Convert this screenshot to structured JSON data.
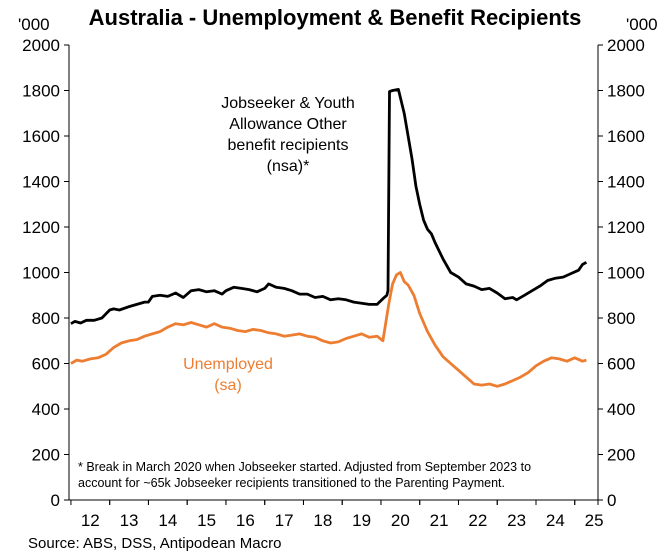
{
  "chart_data": {
    "type": "line",
    "title": "Australia - Unemployment & Benefit Recipients",
    "unit_left": "'000",
    "unit_right": "'000",
    "ylim": [
      0,
      2000
    ],
    "yticks": [
      0,
      200,
      400,
      600,
      800,
      1000,
      1200,
      1400,
      1600,
      1800,
      2000
    ],
    "xlim": [
      11.95,
      25.6
    ],
    "xticks": [
      12,
      13,
      14,
      15,
      16,
      17,
      18,
      19,
      20,
      21,
      22,
      23,
      24,
      25
    ],
    "grid": false,
    "colors": {
      "jobseeker": "#000000",
      "unemployed": "#ED7D31"
    },
    "series": [
      {
        "name": "Jobseeker & Youth Allowance Other benefit recipients (nsa)*",
        "label_lines": [
          "Jobseeker & Youth",
          "Allowance Other",
          "benefit recipients",
          "(nsa)*"
        ],
        "x": [
          12.0,
          12.1,
          12.25,
          12.4,
          12.6,
          12.8,
          13.0,
          13.1,
          13.25,
          13.5,
          13.7,
          13.9,
          14.0,
          14.1,
          14.3,
          14.5,
          14.7,
          14.9,
          15.1,
          15.3,
          15.5,
          15.7,
          15.9,
          16.0,
          16.2,
          16.4,
          16.6,
          16.8,
          17.0,
          17.1,
          17.3,
          17.5,
          17.7,
          17.9,
          18.1,
          18.3,
          18.5,
          18.7,
          18.9,
          19.1,
          19.3,
          19.5,
          19.7,
          19.9,
          20.05,
          20.15,
          20.18,
          20.22,
          20.3,
          20.45,
          20.6,
          20.7,
          20.8,
          20.9,
          21.0,
          21.1,
          21.2,
          21.3,
          21.4,
          21.6,
          21.8,
          22.0,
          22.2,
          22.4,
          22.6,
          22.8,
          23.0,
          23.2,
          23.4,
          23.5,
          23.7,
          23.9,
          24.1,
          24.3,
          24.5,
          24.7,
          24.9,
          25.1,
          25.2,
          25.3
        ],
        "values": [
          775,
          785,
          778,
          790,
          790,
          800,
          835,
          840,
          835,
          850,
          860,
          870,
          870,
          895,
          900,
          895,
          910,
          890,
          920,
          925,
          915,
          920,
          905,
          920,
          935,
          930,
          925,
          915,
          930,
          950,
          935,
          930,
          920,
          905,
          905,
          890,
          895,
          880,
          885,
          880,
          870,
          865,
          860,
          860,
          885,
          900,
          920,
          1795,
          1800,
          1805,
          1700,
          1600,
          1500,
          1380,
          1300,
          1230,
          1190,
          1170,
          1130,
          1060,
          1000,
          980,
          950,
          940,
          925,
          930,
          910,
          885,
          890,
          880,
          900,
          920,
          940,
          965,
          975,
          980,
          995,
          1010,
          1035,
          1045
        ]
      },
      {
        "name": "Unemployed (sa)",
        "label_lines": [
          "Unemployed",
          "(sa)"
        ],
        "x": [
          12.0,
          12.15,
          12.3,
          12.5,
          12.7,
          12.9,
          13.1,
          13.3,
          13.5,
          13.7,
          13.9,
          14.1,
          14.3,
          14.5,
          14.7,
          14.9,
          15.1,
          15.3,
          15.5,
          15.7,
          15.9,
          16.1,
          16.3,
          16.5,
          16.7,
          16.9,
          17.1,
          17.3,
          17.5,
          17.7,
          17.9,
          18.1,
          18.3,
          18.5,
          18.7,
          18.9,
          19.1,
          19.3,
          19.5,
          19.7,
          19.9,
          20.05,
          20.2,
          20.3,
          20.4,
          20.5,
          20.6,
          20.7,
          20.85,
          21.0,
          21.2,
          21.4,
          21.6,
          21.8,
          22.0,
          22.2,
          22.4,
          22.6,
          22.8,
          23.0,
          23.2,
          23.4,
          23.6,
          23.8,
          24.0,
          24.2,
          24.4,
          24.6,
          24.8,
          25.0,
          25.2,
          25.3
        ],
        "values": [
          600,
          615,
          610,
          620,
          625,
          640,
          670,
          690,
          700,
          705,
          720,
          730,
          740,
          760,
          775,
          770,
          780,
          770,
          760,
          775,
          760,
          755,
          745,
          740,
          750,
          745,
          735,
          730,
          720,
          725,
          730,
          720,
          715,
          700,
          690,
          695,
          710,
          720,
          730,
          715,
          720,
          700,
          860,
          950,
          990,
          1000,
          960,
          945,
          900,
          820,
          740,
          680,
          630,
          600,
          570,
          540,
          510,
          505,
          510,
          500,
          510,
          525,
          540,
          560,
          590,
          610,
          625,
          620,
          610,
          625,
          610,
          615
        ]
      }
    ],
    "footnote_lines": [
      "* Break in March 2020 when Jobseeker started. Adjusted from September 2023 to",
      "account for ~65k Jobseeker recipients transitioned to the Parenting Payment."
    ],
    "source": "Source: ABS, DSS, Antipodean Macro"
  }
}
